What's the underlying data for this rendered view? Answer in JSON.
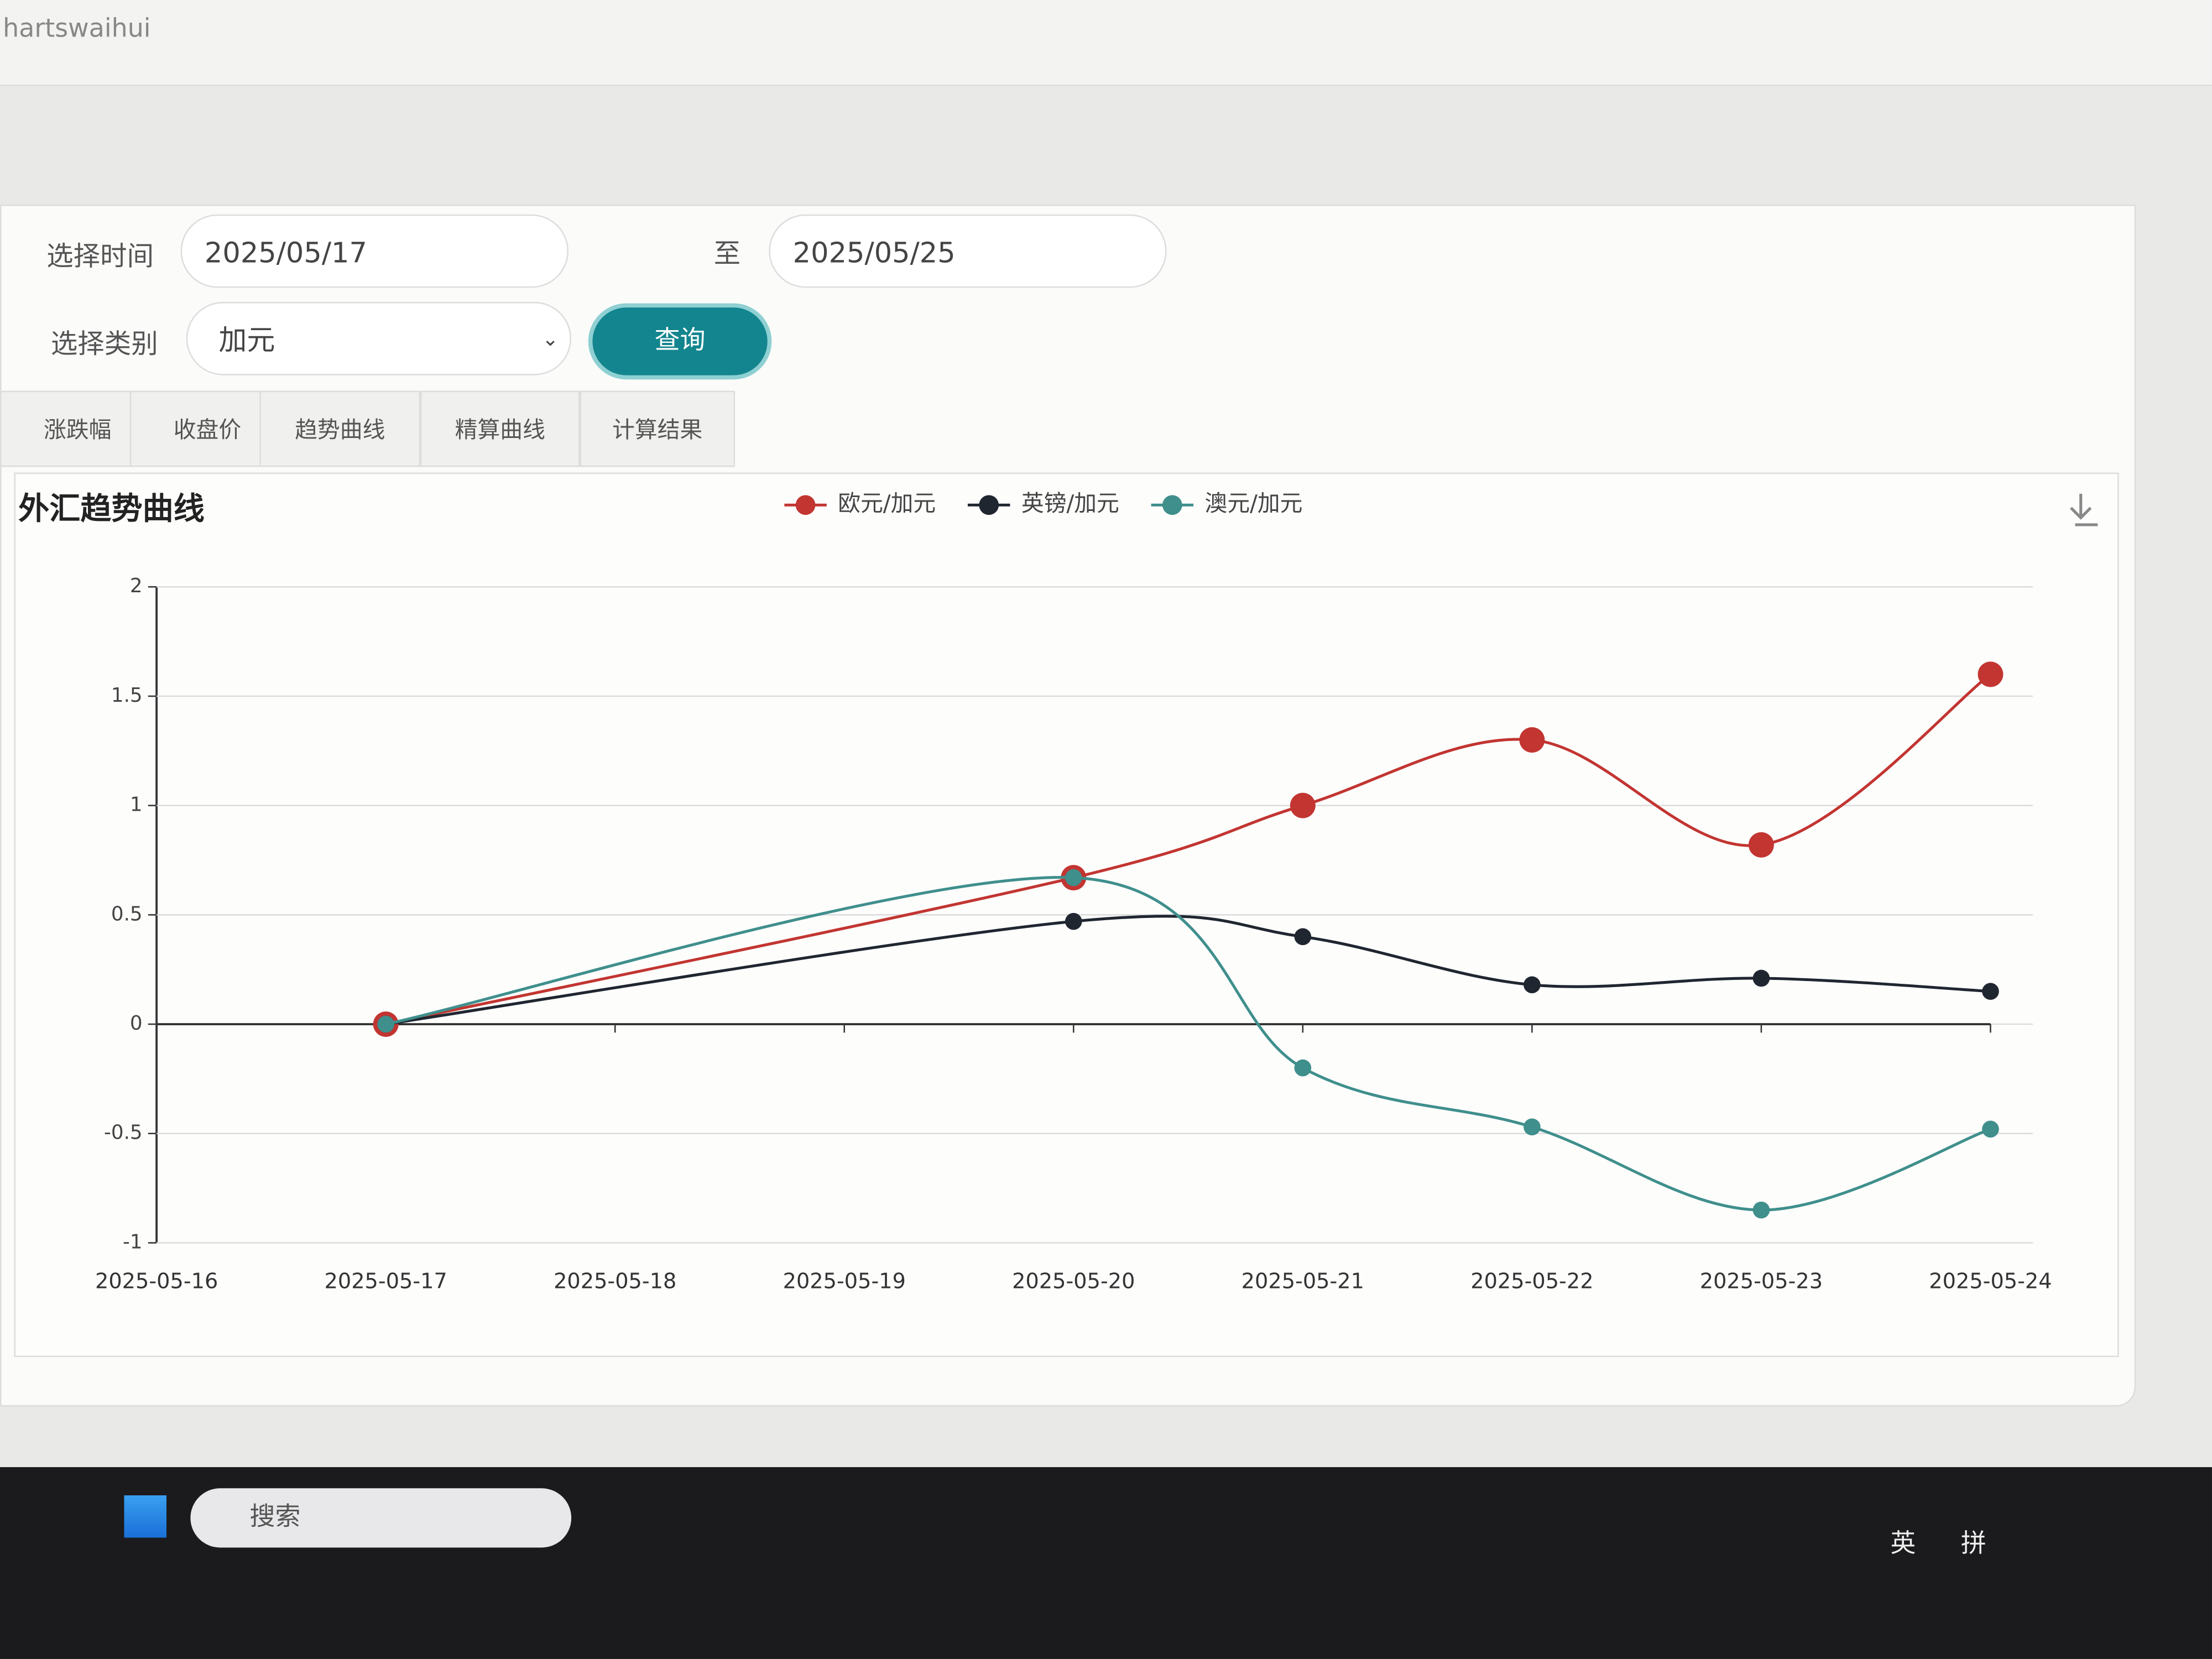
{
  "browser": {
    "address": "hartswaihui"
  },
  "form": {
    "time_label": "选择时间",
    "start_date": "2025/05/17",
    "to_label": "至",
    "end_date": "2025/05/25",
    "category_label": "选择类别",
    "category": "加元",
    "query_button": "查询"
  },
  "tabs": [
    "涨跌幅",
    "收盘价",
    "趋势曲线",
    "精算曲线",
    "计算结果"
  ],
  "chart_data": {
    "type": "line",
    "title": "外汇趋势曲线",
    "x": [
      "2025-05-17",
      "2025-05-20",
      "2025-05-21",
      "2025-05-22",
      "2025-05-23",
      "2025-05-24"
    ],
    "xlim": [
      "2025-05-16",
      "2025-05-24"
    ],
    "xticks": [
      "2025-05-16",
      "2025-05-17",
      "2025-05-18",
      "2025-05-19",
      "2025-05-20",
      "2025-05-21",
      "2025-05-22",
      "2025-05-23",
      "2025-05-24"
    ],
    "ylim": [
      -1,
      2
    ],
    "yticks": [
      -1,
      -0.5,
      0,
      0.5,
      1,
      1.5,
      2
    ],
    "grid": true,
    "smooth": true,
    "series": [
      {
        "name": "欧元/加元",
        "color": "#c23531",
        "values": [
          0,
          0.67,
          1.0,
          1.3,
          0.82,
          1.6
        ]
      },
      {
        "name": "英镑/加元",
        "color": "#1f2630",
        "values": [
          0,
          0.47,
          0.4,
          0.18,
          0.21,
          0.15
        ]
      },
      {
        "name": "澳元/加元",
        "color": "#3f8f8c",
        "values": [
          0,
          0.67,
          -0.2,
          -0.47,
          -0.85,
          -0.48
        ]
      }
    ]
  },
  "taskbar": {
    "search": "搜索",
    "tray": [
      "英",
      "拼"
    ]
  }
}
